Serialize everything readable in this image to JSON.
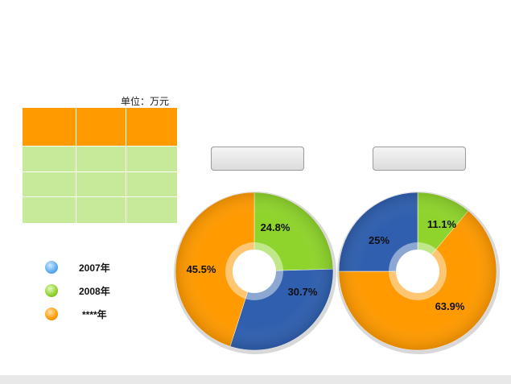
{
  "unit_label": "单位：万元",
  "legend": [
    {
      "label": "2007年",
      "color": "#5aaaf0"
    },
    {
      "label": "2008年",
      "color": "#8fd12a"
    },
    {
      "label": "****年",
      "color": "#ff9a00"
    }
  ],
  "colors": {
    "orange": "#ff9a00",
    "green": "#8ed42c",
    "blue": "#2f5fae",
    "table_header": "#ff9a00",
    "table_body": "#c6e99a"
  },
  "chart_data": [
    {
      "type": "pie",
      "title": "",
      "slices": [
        {
          "label": "24.8%",
          "value": 24.8,
          "color": "#8ed42c"
        },
        {
          "label": "30.7%",
          "value": 30.7,
          "color": "#2f5fae"
        },
        {
          "label": "45.5%",
          "value": 45.5,
          "color": "#ff9a00"
        }
      ]
    },
    {
      "type": "pie",
      "title": "",
      "slices": [
        {
          "label": "11.1%",
          "value": 11.1,
          "color": "#8ed42c"
        },
        {
          "label": "63.9%",
          "value": 63.9,
          "color": "#ff9a00"
        },
        {
          "label": "25%",
          "value": 25,
          "color": "#2f5fae"
        }
      ]
    }
  ]
}
